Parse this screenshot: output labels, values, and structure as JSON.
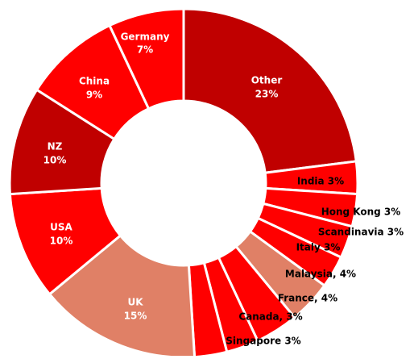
{
  "chart_data": {
    "type": "donut",
    "categories": [
      "Other",
      "India",
      "Hong Kong",
      "Scandinavia",
      "Italy",
      "Malaysia",
      "France",
      "Canada",
      "Singapore",
      "UK",
      "USA",
      "NZ",
      "China",
      "Germany"
    ],
    "values": [
      23,
      3,
      3,
      3,
      3,
      4,
      4,
      3,
      3,
      15,
      10,
      10,
      9,
      7
    ],
    "labels": [
      [
        "Other",
        "23%"
      ],
      [
        "India 3%"
      ],
      [
        "Hong Kong 3%"
      ],
      [
        "Scandinavia 3%"
      ],
      [
        "Italy 3%"
      ],
      [
        "Malaysia, 4%"
      ],
      [
        "France, 4%"
      ],
      [
        "Canada, 3%"
      ],
      [
        "Singapore 3%"
      ],
      [
        "UK",
        "15%"
      ],
      [
        "USA",
        "10%"
      ],
      [
        "NZ",
        "10%"
      ],
      [
        "China",
        "9%"
      ],
      [
        "Germany",
        "7%"
      ]
    ],
    "colors": [
      "#c00000",
      "#ff0000",
      "#ff0000",
      "#ff0000",
      "#ff0000",
      "#e08066",
      "#ff0000",
      "#ff0000",
      "#ff0000",
      "#e08066",
      "#ff0000",
      "#c00000",
      "#ff0000",
      "#ff0000"
    ]
  }
}
